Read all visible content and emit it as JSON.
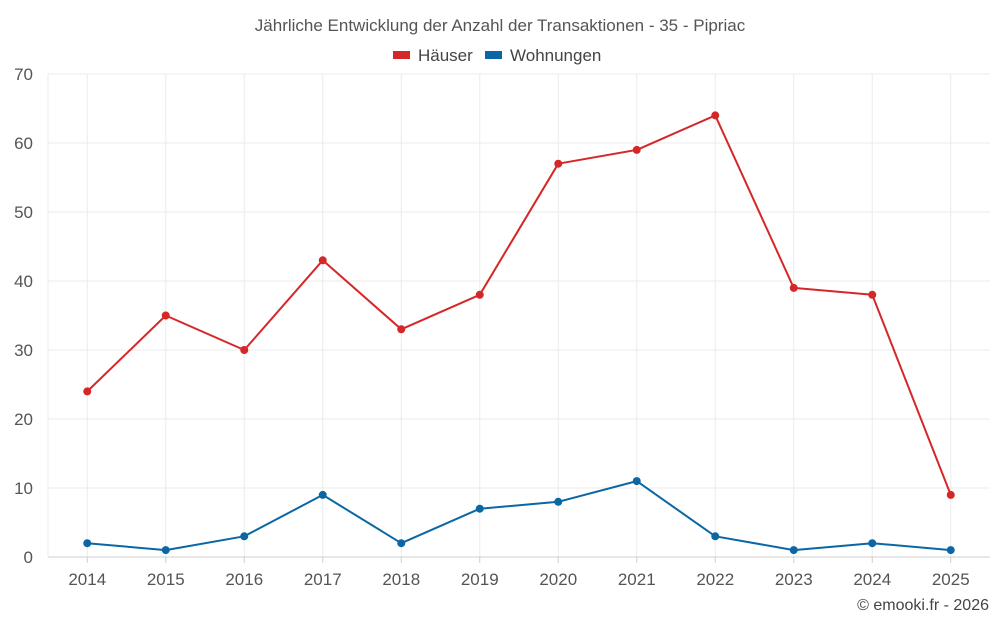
{
  "chart_data": {
    "type": "line",
    "title": "Jährliche Entwicklung der Anzahl der Transaktionen - 35 - Pipriac",
    "categories": [
      "2014",
      "2015",
      "2016",
      "2017",
      "2018",
      "2019",
      "2020",
      "2021",
      "2022",
      "2023",
      "2024",
      "2025"
    ],
    "series": [
      {
        "name": "Häuser",
        "color": "#d62728",
        "values": [
          24,
          35,
          30,
          43,
          33,
          38,
          57,
          59,
          64,
          39,
          38,
          9
        ]
      },
      {
        "name": "Wohnungen",
        "color": "#0a67a3",
        "values": [
          2,
          1,
          3,
          9,
          2,
          7,
          8,
          11,
          3,
          1,
          2,
          1
        ]
      }
    ],
    "ylim": [
      0,
      70
    ],
    "yticks": [
      "0",
      "10",
      "20",
      "30",
      "40",
      "50",
      "60",
      "70"
    ],
    "xlabel": "",
    "ylabel": "",
    "legend_position": "top-center",
    "grid": true
  },
  "credit": "© emooki.fr - 2026"
}
